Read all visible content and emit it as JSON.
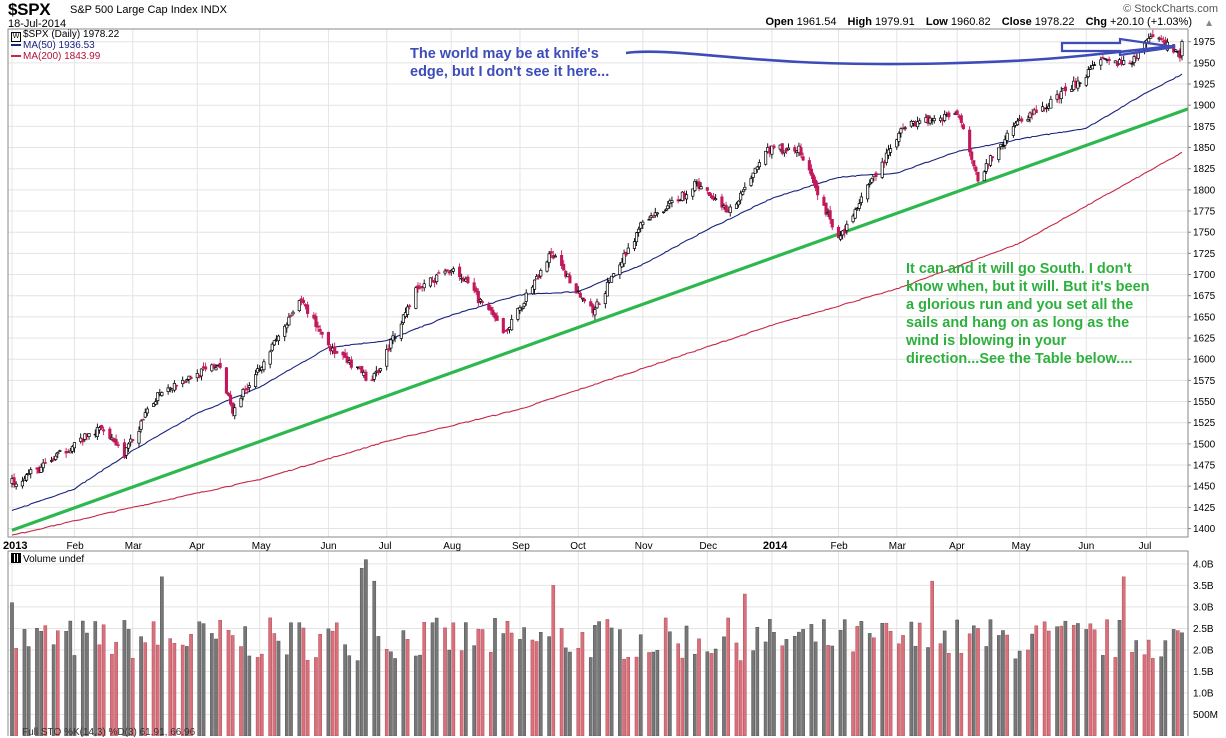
{
  "header": {
    "symbol": "$SPX",
    "description": "S&P 500 Large Cap Index  INDX",
    "date": "18-Jul-2014",
    "brand": "© StockCharts.com",
    "open_label": "Open",
    "open": "1961.54",
    "high_label": "High",
    "high": "1979.91",
    "low_label": "Low",
    "low": "1960.82",
    "close_label": "Close",
    "close": "1978.22",
    "chg_label": "Chg",
    "chg": "+20.10 (+1.03%)"
  },
  "legend": {
    "price": "$SPX (Daily) 1978.22",
    "ma50": "MA(50) 1936.53",
    "ma200": "MA(200) 1843.99",
    "volume": "Volume undef",
    "footer": "Full STO %K(14,3) %D(3) 61.91, 66.96"
  },
  "annotations": {
    "top": "The world may be at knife's edge, but I don't see it here...",
    "right": "It can and it will go South.  I don't know when, but it will. But it's been a glorious run and you set all the sails and hang on as long as the wind is blowing in your direction...See the Table below...."
  },
  "colors": {
    "up": "#000000",
    "down": "#c2185b",
    "ma50": "#1a237e",
    "ma200": "#c62848",
    "trend": "#2db84d",
    "annotation_blue": "#3d4cb8",
    "annotation_green": "#2eb03e",
    "vol_up": "#777777",
    "vol_down": "#d9707a",
    "grid": "#e4e4e4"
  },
  "chart_data": [
    {
      "type": "candlestick",
      "title": "$SPX (Daily)",
      "x_ticks": [
        {
          "label": "2013",
          "date": "2013-01-02",
          "bold": true
        },
        {
          "label": "Feb",
          "date": "2013-02-01"
        },
        {
          "label": "Mar",
          "date": "2013-03-01"
        },
        {
          "label": "Apr",
          "date": "2013-04-01"
        },
        {
          "label": "May",
          "date": "2013-05-01"
        },
        {
          "label": "Jun",
          "date": "2013-06-03"
        },
        {
          "label": "Jul",
          "date": "2013-07-01"
        },
        {
          "label": "Aug",
          "date": "2013-08-01"
        },
        {
          "label": "Sep",
          "date": "2013-09-03"
        },
        {
          "label": "Oct",
          "date": "2013-10-01"
        },
        {
          "label": "Nov",
          "date": "2013-11-01"
        },
        {
          "label": "Dec",
          "date": "2013-12-02"
        },
        {
          "label": "2014",
          "date": "2014-01-02",
          "bold": true
        },
        {
          "label": "Feb",
          "date": "2014-02-03"
        },
        {
          "label": "Mar",
          "date": "2014-03-03"
        },
        {
          "label": "Apr",
          "date": "2014-04-01"
        },
        {
          "label": "May",
          "date": "2014-05-01"
        },
        {
          "label": "Jun",
          "date": "2014-06-02"
        },
        {
          "label": "Jul",
          "date": "2014-07-01"
        }
      ],
      "y_ticks": [
        1400,
        1425,
        1450,
        1475,
        1500,
        1525,
        1550,
        1575,
        1600,
        1625,
        1650,
        1675,
        1700,
        1725,
        1750,
        1775,
        1800,
        1825,
        1850,
        1875,
        1900,
        1925,
        1950,
        1975
      ],
      "ylim": [
        1390,
        1990
      ],
      "close_anchors": [
        [
          "2013-01-02",
          1455
        ],
        [
          "2013-01-15",
          1470
        ],
        [
          "2013-01-31",
          1498
        ],
        [
          "2013-02-15",
          1520
        ],
        [
          "2013-02-25",
          1488
        ],
        [
          "2013-03-14",
          1563
        ],
        [
          "2013-04-11",
          1593
        ],
        [
          "2013-04-18",
          1541
        ],
        [
          "2013-05-21",
          1669
        ],
        [
          "2013-05-31",
          1630
        ],
        [
          "2013-06-05",
          1610
        ],
        [
          "2013-06-24",
          1573
        ],
        [
          "2013-07-15",
          1682
        ],
        [
          "2013-08-02",
          1709
        ],
        [
          "2013-08-27",
          1631
        ],
        [
          "2013-09-18",
          1725
        ],
        [
          "2013-10-08",
          1655
        ],
        [
          "2013-10-31",
          1757
        ],
        [
          "2013-11-27",
          1807
        ],
        [
          "2013-12-13",
          1775
        ],
        [
          "2013-12-31",
          1848
        ],
        [
          "2014-01-15",
          1848
        ],
        [
          "2014-02-03",
          1741
        ],
        [
          "2014-03-07",
          1878
        ],
        [
          "2014-04-02",
          1890
        ],
        [
          "2014-04-11",
          1815
        ],
        [
          "2014-05-01",
          1883
        ],
        [
          "2014-05-13",
          1897
        ],
        [
          "2014-06-09",
          1951
        ],
        [
          "2014-06-24",
          1949
        ],
        [
          "2014-07-03",
          1985
        ],
        [
          "2014-07-17",
          1958
        ],
        [
          "2014-07-18",
          1978.22
        ]
      ],
      "series": [
        {
          "name": "MA(50)",
          "last": 1936.53,
          "anchors": [
            [
              "2013-01-02",
              1421
            ],
            [
              "2013-02-01",
              1447
            ],
            [
              "2013-03-01",
              1492
            ],
            [
              "2013-04-01",
              1536
            ],
            [
              "2013-05-01",
              1567
            ],
            [
              "2013-06-03",
              1614
            ],
            [
              "2013-07-01",
              1622
            ],
            [
              "2013-08-01",
              1652
            ],
            [
              "2013-09-03",
              1676
            ],
            [
              "2013-10-01",
              1680
            ],
            [
              "2013-11-01",
              1712
            ],
            [
              "2013-12-02",
              1753
            ],
            [
              "2014-01-02",
              1790
            ],
            [
              "2014-02-03",
              1815
            ],
            [
              "2014-03-03",
              1820
            ],
            [
              "2014-04-01",
              1845
            ],
            [
              "2014-05-01",
              1860
            ],
            [
              "2014-06-02",
              1873
            ],
            [
              "2014-07-01",
              1915
            ],
            [
              "2014-07-18",
              1936.53
            ]
          ]
        },
        {
          "name": "MA(200)",
          "last": 1843.99,
          "anchors": [
            [
              "2013-01-02",
              1392
            ],
            [
              "2013-03-01",
              1425
            ],
            [
              "2013-05-01",
              1458
            ],
            [
              "2013-07-01",
              1503
            ],
            [
              "2013-09-03",
              1541
            ],
            [
              "2013-11-01",
              1589
            ],
            [
              "2014-01-02",
              1640
            ],
            [
              "2014-03-03",
              1683
            ],
            [
              "2014-05-01",
              1737
            ],
            [
              "2014-07-18",
              1843.99
            ]
          ]
        }
      ],
      "trendline": [
        [
          "2013-01-02",
          1398
        ],
        [
          "2014-07-21",
          1893
        ]
      ]
    },
    {
      "type": "bar",
      "title": "Volume",
      "y_ticks": [
        "500M",
        "1.0B",
        "1.5B",
        "2.0B",
        "2.5B",
        "3.0B",
        "3.5B",
        "4.0B"
      ],
      "y_tick_values": [
        0.5,
        1.0,
        1.5,
        2.0,
        2.5,
        3.0,
        3.5,
        4.0
      ],
      "ylim": [
        0,
        4.3
      ],
      "spikes": [
        [
          "2013-01-02",
          3.1
        ],
        [
          "2013-03-15",
          3.7
        ],
        [
          "2013-06-20",
          3.9
        ],
        [
          "2013-06-21",
          4.1
        ],
        [
          "2013-06-24",
          3.6
        ],
        [
          "2013-09-20",
          3.5
        ],
        [
          "2013-12-20",
          3.3
        ],
        [
          "2014-03-21",
          3.6
        ],
        [
          "2014-06-20",
          3.7
        ],
        [
          "2014-07-18",
          2.4
        ]
      ],
      "typical": 2.2
    }
  ]
}
